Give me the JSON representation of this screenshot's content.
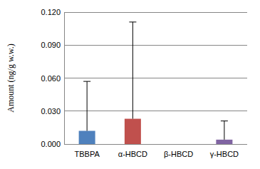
{
  "chart_data": {
    "type": "bar",
    "y_label": "Amount (ng/g w.w.)",
    "categories": [
      "TBBPA",
      "α-HBCD",
      "β-HBCD",
      "γ-HBCD"
    ],
    "values": [
      0.012,
      0.023,
      0,
      0.004
    ],
    "errors": [
      0.045,
      0.088,
      0,
      0.017
    ],
    "colors": [
      "#4f81bd",
      "#c0504d",
      "#9bbb59",
      "#8064a2"
    ],
    "ylim": [
      0,
      0.12
    ],
    "yticks": [
      {
        "value": 0,
        "label": "0.000"
      },
      {
        "value": 0.03,
        "label": "0.030"
      },
      {
        "value": 0.06,
        "label": "0.060"
      },
      {
        "value": 0.09,
        "label": "0.090"
      },
      {
        "value": 0.12,
        "label": "0.120"
      }
    ],
    "grid": true
  }
}
